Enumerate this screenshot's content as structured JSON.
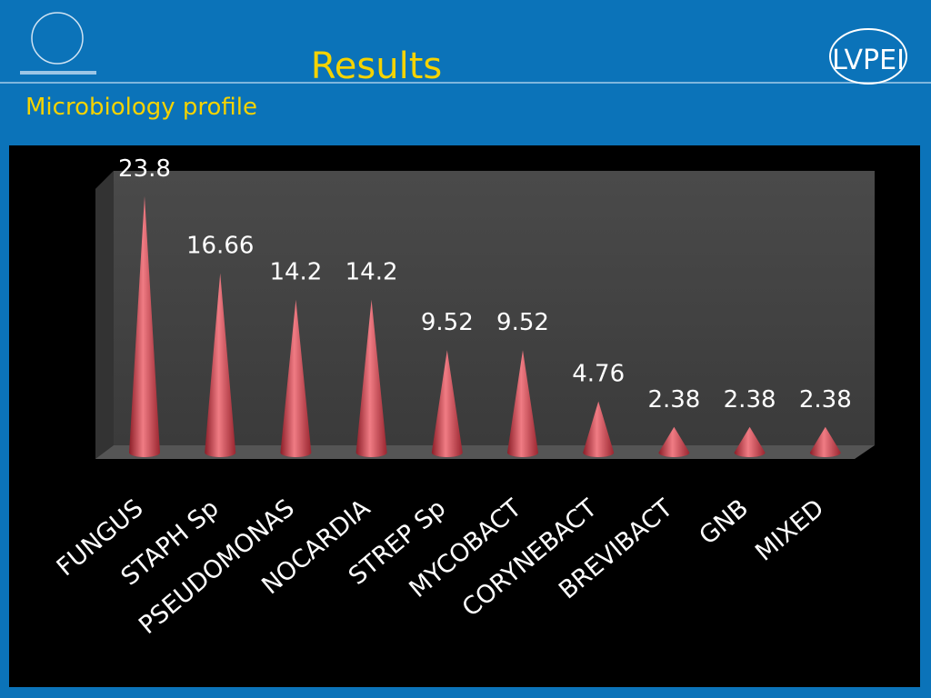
{
  "header": {
    "title": "Results",
    "subtitle": "Microbiology profile",
    "logo_right": "LVPEI"
  },
  "chart_data": {
    "type": "cone",
    "categories": [
      "FUNGUS",
      "STAPH Sp",
      "PSEUDOMONAS",
      "NOCARDIA",
      "STREP Sp",
      "MYCOBACT",
      "CORYNEBACT",
      "BREVIBACT",
      "GNB",
      "MIXED"
    ],
    "values": [
      23.8,
      16.66,
      14.2,
      14.2,
      9.52,
      9.52,
      4.76,
      2.38,
      2.38,
      2.38
    ],
    "color": "#e0505a"
  }
}
